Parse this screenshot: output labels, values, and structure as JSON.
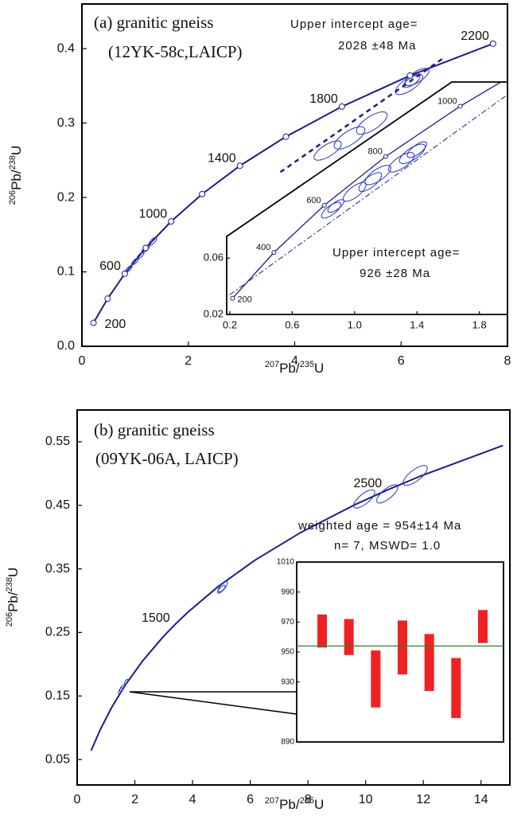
{
  "chart_data": [
    {
      "type": "concordia",
      "title": "(a)  granitic gneiss",
      "subtitle": "(12YK-58c,LAICP)",
      "xlim": [
        0,
        8
      ],
      "ylim": [
        0,
        0.46
      ],
      "xticks": [
        0,
        2,
        4,
        6,
        8
      ],
      "yticks": [
        {
          "value": 0,
          "label": "0.0"
        },
        0.1,
        0.2,
        0.3,
        0.4
      ],
      "x_label": [
        "207",
        "Pb/",
        "235",
        "U"
      ],
      "y_label": [
        "206",
        "Pb/",
        "238",
        "U"
      ],
      "markers": true,
      "concordia": {
        "color": "#1c1c8c",
        "x": [
          0.2177,
          0.4828,
          0.8056,
          1.199,
          1.677,
          2.26,
          2.97,
          3.835,
          4.887,
          6.168,
          7.729
        ],
        "y": [
          0.0315,
          0.064,
          0.0975,
          0.1321,
          0.1678,
          0.2046,
          0.2426,
          0.2817,
          0.3221,
          0.3638,
          0.4067
        ],
        "age_labels": [
          200,
          null,
          600,
          null,
          1000,
          null,
          1400,
          null,
          1800,
          null,
          2200
        ]
      },
      "ellipses": {
        "color": "#2233cc",
        "x": [
          0.88,
          1.0,
          1.1,
          1.2,
          1.33,
          4.62,
          5.03,
          5.45,
          6.15,
          6.2,
          6.3
        ],
        "y": [
          0.104,
          0.114,
          0.122,
          0.131,
          0.141,
          0.263,
          0.28,
          0.3,
          0.352,
          0.356,
          0.362
        ],
        "x_err": [
          0.06,
          0.06,
          0.06,
          0.07,
          0.07,
          0.25,
          0.28,
          0.28,
          0.25,
          0.15,
          0.22
        ],
        "y_err": [
          0.004,
          0.004,
          0.004,
          0.005,
          0.005,
          0.011,
          0.013,
          0.013,
          0.012,
          0.007,
          0.01
        ]
      },
      "discordia": {
        "x": [
          3.73,
          6.79
        ],
        "y": [
          0.234,
          0.387
        ]
      },
      "annotations": [
        "Upper intercept age=",
        "2028 ±48 Ma"
      ],
      "inset": {
        "type": "concordia",
        "xlim": [
          0.18,
          1.98
        ],
        "ylim": [
          0.02,
          0.185
        ],
        "xticks": [
          0.2,
          0.6,
          {
            "value": 1.0,
            "label": "1.0"
          },
          1.4,
          1.8
        ],
        "yticks": [
          0.02,
          0.06
        ],
        "markers": true,
        "concordia": {
          "color": "#1c1c8c",
          "x": [
            0.2177,
            0.4828,
            0.8056,
            1.199,
            1.677,
            1.955
          ],
          "y": [
            0.0315,
            0.064,
            0.0975,
            0.1321,
            0.1678,
            0.1861
          ],
          "age_labels": [
            200,
            400,
            600,
            800,
            1000,
            null
          ]
        },
        "ellipses": {
          "color": "#2233cc",
          "x": [
            0.85,
            0.88,
            1.0,
            1.1,
            1.15,
            1.3,
            1.37,
            1.4
          ],
          "y": [
            0.094,
            0.097,
            0.107,
            0.114,
            0.119,
            0.128,
            0.134,
            0.137
          ],
          "x_err": [
            0.06,
            0.05,
            0.07,
            0.07,
            0.08,
            0.08,
            0.08,
            0.06
          ],
          "y_err": [
            0.005,
            0.004,
            0.006,
            0.006,
            0.006,
            0.006,
            0.006,
            0.005
          ]
        },
        "discordia": {
          "x": [
            0.2,
            1.98
          ],
          "y": [
            0.034,
            0.176
          ]
        },
        "annotations": [
          "Upper intercept age=",
          "926 ±28 Ma"
        ]
      }
    },
    {
      "type": "concordia",
      "title": "(b)   granitic gneiss",
      "subtitle": "(09YK-06A, LAICP)",
      "xlim": [
        0,
        15
      ],
      "ylim": [
        0.01,
        0.6
      ],
      "xticks": [
        0,
        2,
        4,
        6,
        8,
        10,
        12,
        14
      ],
      "yticks": [
        0.05,
        0.15,
        0.25,
        0.35,
        0.45,
        0.55
      ],
      "x_label": [
        "207",
        "Pb/",
        "235",
        "U"
      ],
      "y_label": [
        "206",
        "Pb/",
        "238",
        "U"
      ],
      "markers": false,
      "concordia": {
        "color": "#1c1c8c",
        "x": [
          0.4828,
          0.8056,
          1.199,
          1.677,
          2.26,
          2.97,
          3.381,
          3.835,
          4.887,
          6.168,
          7.729,
          9.63,
          10.73,
          11.945,
          14.762
        ],
        "y": [
          0.064,
          0.0975,
          0.1321,
          0.1678,
          0.2046,
          0.2426,
          0.262,
          0.2817,
          0.3221,
          0.3638,
          0.4067,
          0.451,
          0.4737,
          0.4968,
          0.5442
        ],
        "age_labels": [
          null,
          null,
          null,
          null,
          null,
          null,
          1500,
          null,
          null,
          null,
          null,
          null,
          2500,
          null,
          null
        ]
      },
      "ellipses": {
        "color": "#2233cc",
        "x": [
          1.5,
          1.55,
          1.7,
          5.0,
          5.05,
          9.95,
          10.75,
          11.72
        ],
        "y": [
          0.158,
          0.162,
          0.172,
          0.318,
          0.322,
          0.46,
          0.468,
          0.497
        ],
        "x_err": [
          0.06,
          0.06,
          0.05,
          0.12,
          0.15,
          0.35,
          0.35,
          0.4
        ],
        "y_err": [
          0.005,
          0.005,
          0.004,
          0.006,
          0.008,
          0.013,
          0.013,
          0.014
        ]
      },
      "annotations": [
        "weighted age = 954±14 Ma",
        "n= 7, MSWD= 1.0"
      ],
      "inset": {
        "type": "errorbar",
        "ylim": [
          890,
          1010
        ],
        "yticks": [
          890,
          930,
          950,
          970,
          990,
          1010
        ],
        "values": [
          964,
          960,
          932,
          953,
          943,
          926,
          967
        ],
        "errors": [
          11,
          12,
          19,
          18,
          19,
          20,
          11
        ],
        "color": "#ee2222",
        "mean": 954,
        "mean_color": "#228822"
      }
    }
  ]
}
